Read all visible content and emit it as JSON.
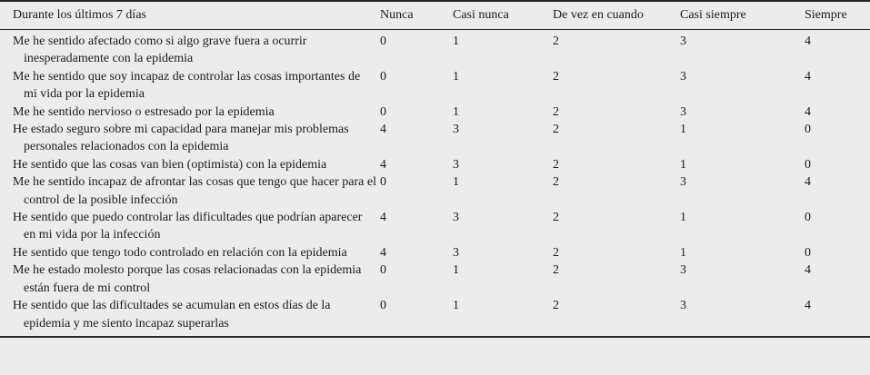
{
  "table": {
    "header": {
      "question_col": "Durante los últimos 7 días",
      "options": [
        "Nunca",
        "Casi nunca",
        "De vez en cuando",
        "Casi siempre",
        "Siempre"
      ]
    },
    "rows": [
      {
        "question": "Me he sentido afectado como si algo grave fuera a ocurrir inesperadamente con la epidemia",
        "values": [
          "0",
          "1",
          "2",
          "3",
          "4"
        ]
      },
      {
        "question": "Me he sentido que soy incapaz de controlar las cosas importantes de mi vida por la epidemia",
        "values": [
          "0",
          "1",
          "2",
          "3",
          "4"
        ]
      },
      {
        "question": "Me he sentido nervioso o estresado por la epidemia",
        "values": [
          "0",
          "1",
          "2",
          "3",
          "4"
        ]
      },
      {
        "question": "He estado seguro sobre mi capacidad para manejar mis problemas personales relacionados con la epidemia",
        "values": [
          "4",
          "3",
          "2",
          "1",
          "0"
        ]
      },
      {
        "question": "He sentido que las cosas van bien (optimista) con la epidemia",
        "values": [
          "4",
          "3",
          "2",
          "1",
          "0"
        ]
      },
      {
        "question": "Me he sentido incapaz de afrontar las cosas que tengo que hacer para el control de la posible infección",
        "values": [
          "0",
          "1",
          "2",
          "3",
          "4"
        ]
      },
      {
        "question": "He sentido que puedo controlar las dificultades que podrían aparecer en mi vida por la infección",
        "values": [
          "4",
          "3",
          "2",
          "1",
          "0"
        ]
      },
      {
        "question": "He sentido que tengo todo controlado en relación con la epidemia",
        "values": [
          "4",
          "3",
          "2",
          "1",
          "0"
        ]
      },
      {
        "question": "Me he estado molesto porque las cosas relacionadas con la epidemia están fuera de mi control",
        "values": [
          "0",
          "1",
          "2",
          "3",
          "4"
        ]
      },
      {
        "question": "He sentido que las dificultades se acumulan en estos días de la epidemia y me siento incapaz superarlas",
        "values": [
          "0",
          "1",
          "2",
          "3",
          "4"
        ]
      }
    ]
  },
  "colors": {
    "background": "#ececec",
    "rule": "#262626",
    "text": "#1c1c1c"
  }
}
